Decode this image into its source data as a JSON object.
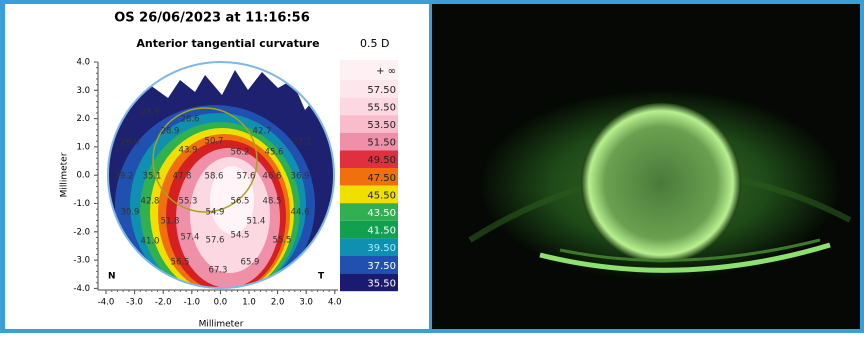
{
  "left_panel": {
    "title": "OS 26/06/2023 at 11:16:56",
    "subtitle": "Anterior tangential curvature",
    "step": "0.5 D",
    "axes": {
      "x_label": "Millimeter",
      "y_label": "Millimeter",
      "x_ticks": [
        "-4.0",
        "-3.0",
        "-2.0",
        "-1.0",
        "0.0",
        "1.0",
        "2.0",
        "3.0",
        "4.0"
      ],
      "y_ticks": [
        "4.0",
        "3.0",
        "2.0",
        "1.0",
        "0.0",
        "-1.0",
        "-2.0",
        "-3.0",
        "-4.0"
      ],
      "left_corner": "N",
      "right_corner": "T"
    },
    "legend": {
      "labels": [
        "+ ∞",
        "57.50",
        "55.50",
        "53.50",
        "51.50",
        "49.50",
        "47.50",
        "45.50",
        "43.50",
        "41.50",
        "39.50",
        "37.50",
        "35.50"
      ]
    },
    "map": {
      "labels": [
        "25.9",
        "28.6",
        "28.9",
        "42.7",
        "26.9",
        "43.9",
        "50.7",
        "27.1",
        "56.2",
        "45.6",
        "29.2",
        "35.1",
        "47.8",
        "58.6",
        "57.6",
        "46.6",
        "36.9",
        "42.8",
        "55.3",
        "56.5",
        "48.5",
        "30.9",
        "54.9",
        "44.6",
        "51.8",
        "51.4",
        "57.4",
        "57.6",
        "54.5",
        "55.5",
        "41.0",
        "56.5",
        "65.9",
        "67.3"
      ]
    }
  }
}
